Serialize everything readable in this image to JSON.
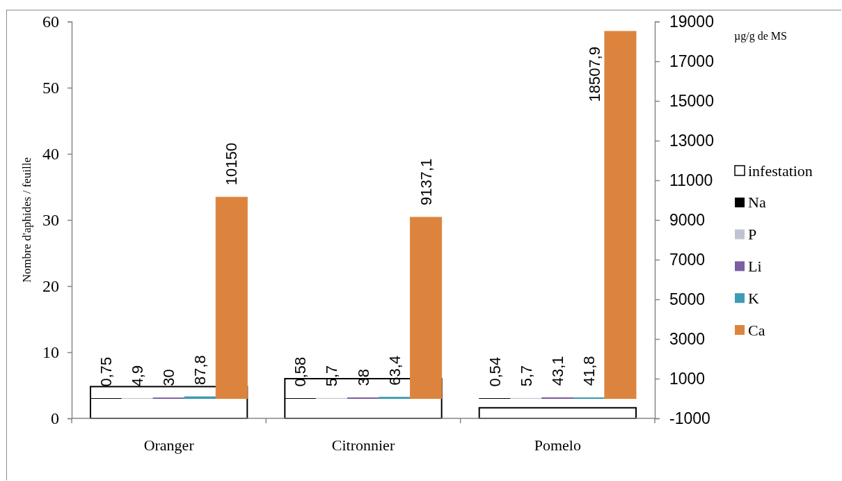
{
  "chart_data": {
    "type": "bar",
    "categories": [
      "Oranger",
      "Citronnier",
      "Pomelo"
    ],
    "ylabel": "Nombre d'aphides / feuille",
    "y2label": "µg/g de MS",
    "ylim": [
      0,
      60
    ],
    "yticks": [
      0,
      10,
      20,
      30,
      40,
      50,
      60
    ],
    "y2lim": [
      -1000,
      19000
    ],
    "y2ticks": [
      -1000,
      1000,
      3000,
      5000,
      7000,
      9000,
      11000,
      13000,
      15000,
      17000,
      19000
    ],
    "legend": "right",
    "series": [
      {
        "name": "infestation",
        "color": "#ffffff",
        "values": [
          4.8,
          6.0,
          1.6
        ]
      },
      {
        "name": "Na",
        "color": "#000000",
        "axis": "y2",
        "values": [
          0.75,
          0.58,
          0.54
        ],
        "value_labels": [
          "0,75",
          "0,58",
          "0,54"
        ]
      },
      {
        "name": "P",
        "color": "#c0c4d0",
        "axis": "y2",
        "values": [
          4.9,
          5.7,
          5.7
        ],
        "value_labels": [
          "4,9",
          "5,7",
          "5,7"
        ]
      },
      {
        "name": "Li",
        "color": "#7b5fa0",
        "axis": "y2",
        "values": [
          30,
          38,
          43.1
        ],
        "value_labels": [
          "30",
          "38",
          "43,1"
        ]
      },
      {
        "name": "K",
        "color": "#3f9bb5",
        "axis": "y2",
        "values": [
          87.8,
          63.4,
          41.8
        ],
        "value_labels": [
          "87,8",
          "63,4",
          "41,8"
        ]
      },
      {
        "name": "Ca",
        "color": "#dc843e",
        "axis": "y2",
        "values": [
          10150,
          9137.1,
          18507.9
        ],
        "value_labels": [
          "10150",
          "9137,1",
          "18507,9"
        ]
      }
    ]
  }
}
